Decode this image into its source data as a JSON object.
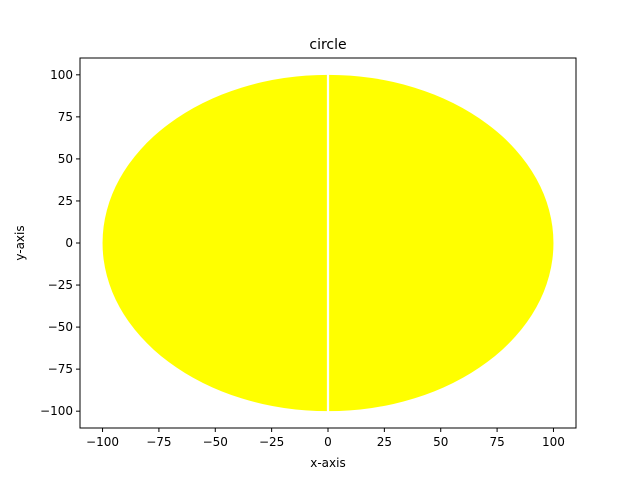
{
  "chart_data": {
    "type": "area",
    "title": "circle",
    "xlabel": "x-axis",
    "ylabel": "y-axis",
    "xlim": [
      -110,
      110
    ],
    "ylim": [
      -110,
      110
    ],
    "x_ticks": [
      -100,
      -75,
      -50,
      -25,
      0,
      25,
      50,
      75,
      100
    ],
    "y_ticks": [
      -100,
      -75,
      -50,
      -25,
      0,
      25,
      50,
      75,
      100
    ],
    "grid": false,
    "fill_color": "#ffff00",
    "series": [
      {
        "shape": "circle",
        "center": [
          0,
          0
        ],
        "radius": 100,
        "gap_x": [
          -0.5,
          0.5
        ]
      }
    ]
  }
}
